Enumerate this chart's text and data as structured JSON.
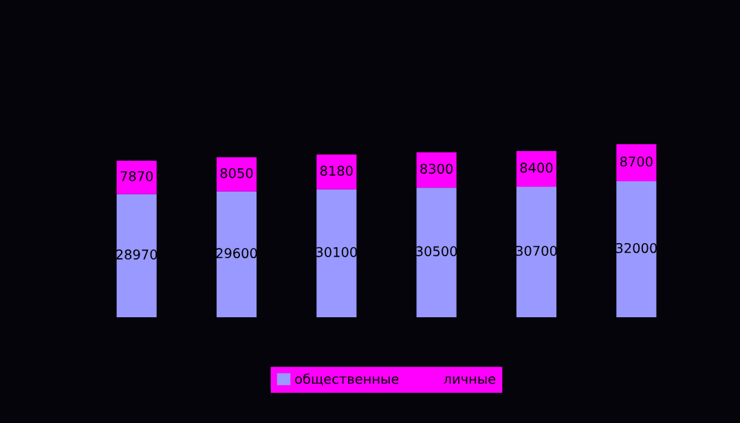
{
  "chart_data": {
    "type": "bar",
    "stacked": true,
    "categories": [
      null,
      null,
      null,
      null,
      null,
      null
    ],
    "series": [
      {
        "name": "общественные",
        "color": "#9999ff",
        "values": [
          28970,
          29600,
          30100,
          30500,
          30700,
          32000
        ]
      },
      {
        "name": "личные",
        "color": "#ff00ff",
        "values": [
          7870,
          8050,
          8180,
          8300,
          8400,
          8700
        ]
      }
    ],
    "data_labels": true,
    "legend": "bottom",
    "grid": false
  }
}
